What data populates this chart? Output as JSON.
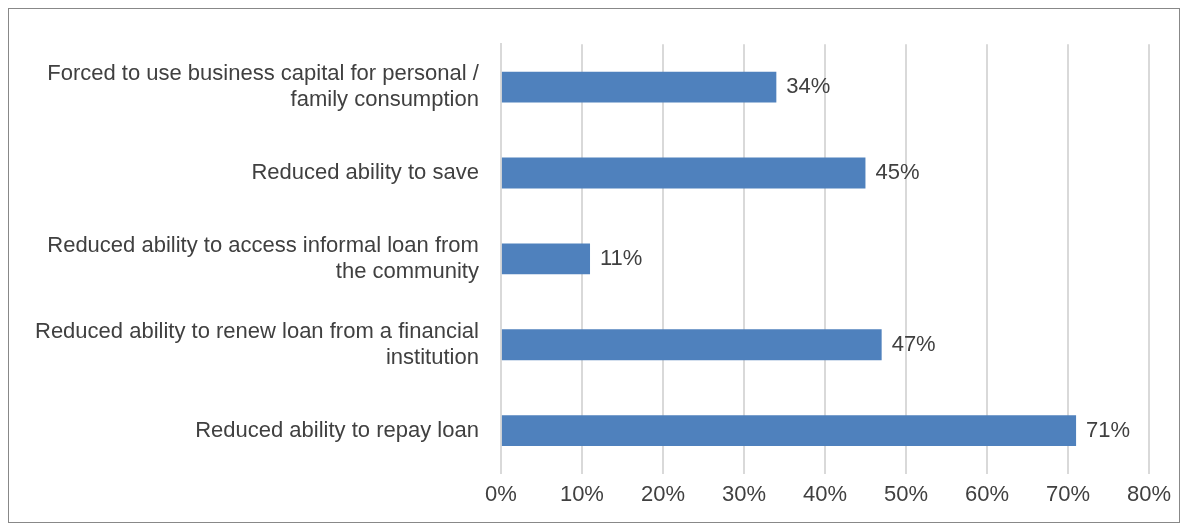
{
  "chart_data": {
    "type": "bar",
    "orientation": "horizontal",
    "categories": [
      "Forced to use business capital for personal / family consumption",
      "Reduced ability to save",
      "Reduced ability to access informal loan from the community",
      "Reduced ability to renew loan from a financial institution",
      "Reduced ability to repay loan"
    ],
    "values": [
      34,
      45,
      11,
      47,
      71
    ],
    "color": "#4f81bd",
    "value_labels": [
      "34%",
      "45%",
      "11%",
      "47%",
      "71%"
    ],
    "xlim": [
      0,
      80
    ],
    "xticks": [
      {
        "value": 0,
        "label": "0%"
      },
      {
        "value": 10,
        "label": "10%"
      },
      {
        "value": 20,
        "label": "20%"
      },
      {
        "value": 30,
        "label": "30%"
      },
      {
        "value": 40,
        "label": "40%"
      },
      {
        "value": 50,
        "label": "50%"
      },
      {
        "value": 60,
        "label": "60%"
      },
      {
        "value": 70,
        "label": "70%"
      },
      {
        "value": 80,
        "label": "80%"
      }
    ],
    "grid": "x",
    "legend": false
  }
}
